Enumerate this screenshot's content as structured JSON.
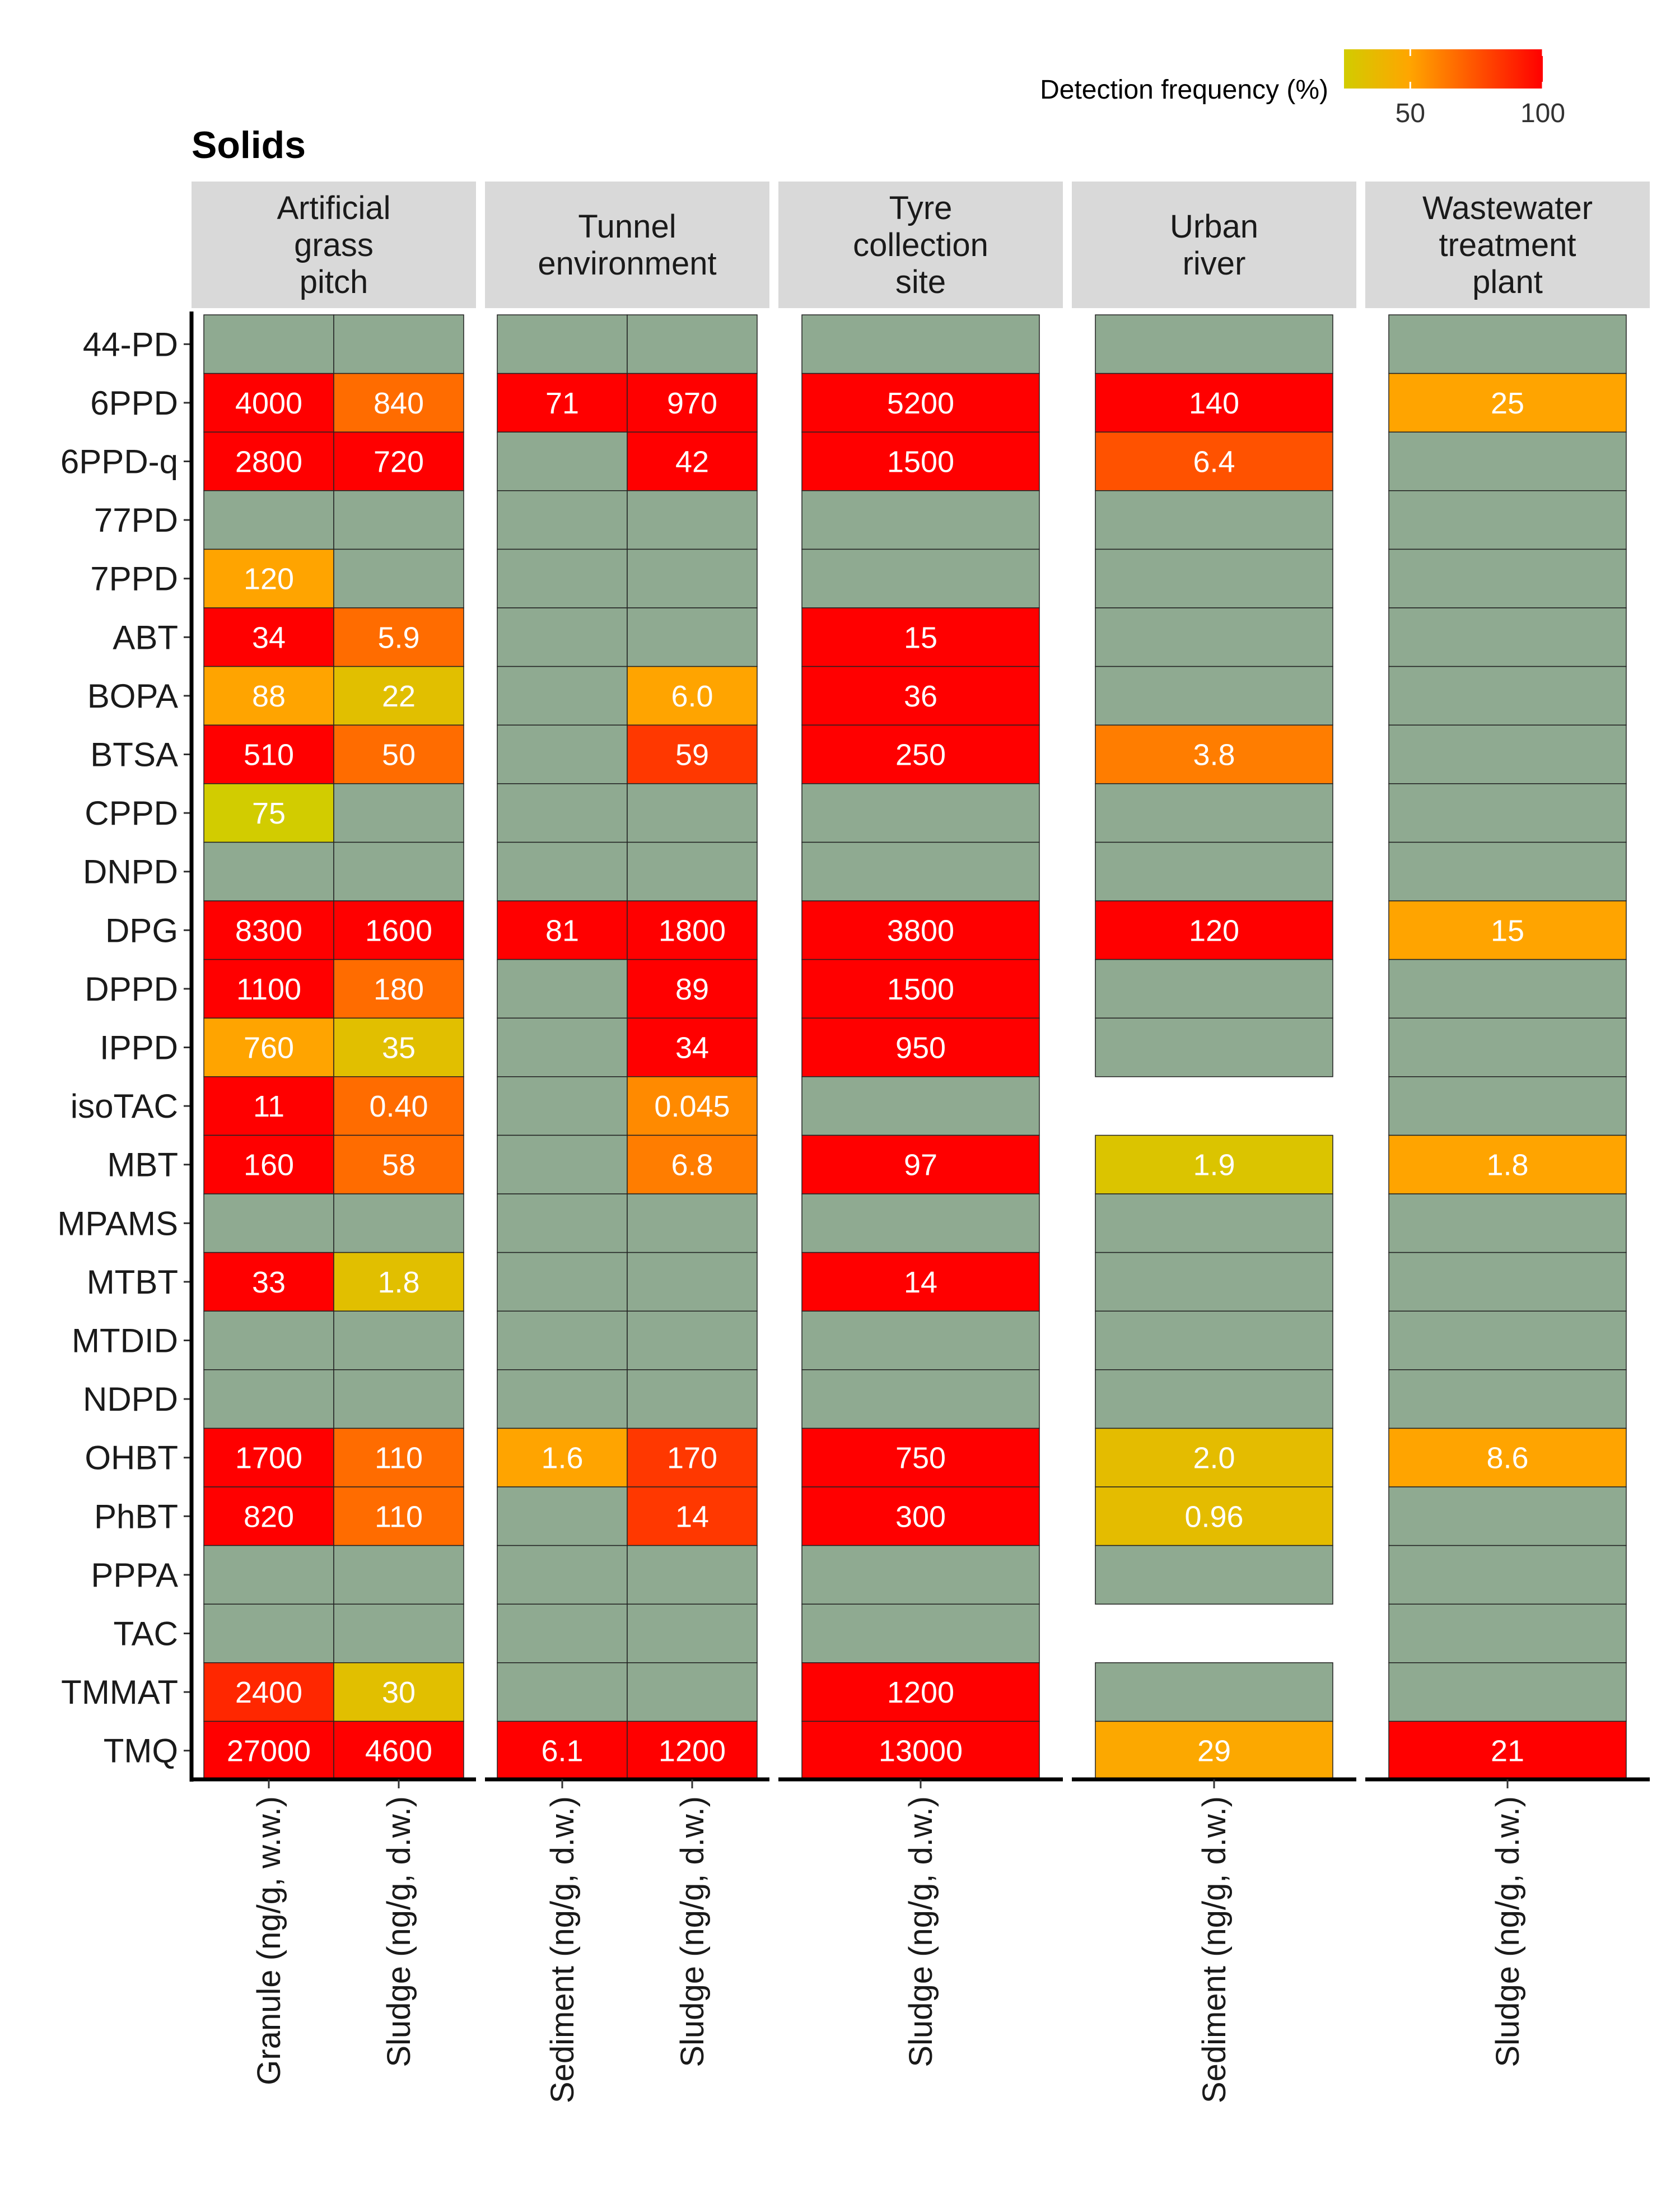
{
  "chart_data": {
    "type": "heatmap",
    "title": "Solids",
    "legend": {
      "title": "Detection frequency (%)",
      "ticks": [
        50,
        100
      ],
      "range": [
        25,
        100
      ],
      "colors": [
        "#d2cc00",
        "#ffa500",
        "#ff0000"
      ],
      "position": "top-right"
    },
    "non_detect_color": "#8faa91",
    "rows": [
      "44-PD",
      "6PPD",
      "6PPD-q",
      "77PD",
      "7PPD",
      "ABT",
      "BOPA",
      "BTSA",
      "CPPD",
      "DNPD",
      "DPG",
      "DPPD",
      "IPPD",
      "isoTAC",
      "MBT",
      "MPAMS",
      "MTBT",
      "MTDID",
      "NDPD",
      "OHBT",
      "PhBT",
      "PPPA",
      "TAC",
      "TMMAT",
      "TMQ"
    ],
    "facets": [
      {
        "name": "Artificial grass pitch",
        "lines": [
          "Artificial",
          "grass",
          "pitch"
        ],
        "columns": [
          {
            "label": "Granule (ng/g, w.w.)",
            "cells": [
              {
                "value": null
              },
              {
                "value": "4000",
                "df": 100
              },
              {
                "value": "2800",
                "df": 100
              },
              {
                "value": null
              },
              {
                "value": "120",
                "df": 50
              },
              {
                "value": "34",
                "df": 100
              },
              {
                "value": "88",
                "df": 50
              },
              {
                "value": "510",
                "df": 100
              },
              {
                "value": "75",
                "df": 25
              },
              {
                "value": null
              },
              {
                "value": "8300",
                "df": 100
              },
              {
                "value": "1100",
                "df": 100
              },
              {
                "value": "760",
                "df": 50
              },
              {
                "value": "11",
                "df": 100
              },
              {
                "value": "160",
                "df": 100
              },
              {
                "value": null
              },
              {
                "value": "33",
                "df": 100
              },
              {
                "value": null
              },
              {
                "value": null
              },
              {
                "value": "1700",
                "df": 100
              },
              {
                "value": "820",
                "df": 100
              },
              {
                "value": null
              },
              {
                "value": null
              },
              {
                "value": "2400",
                "df": 88
              },
              {
                "value": "27000",
                "df": 100
              }
            ]
          },
          {
            "label": "Sludge (ng/g, d.w.)",
            "cells": [
              {
                "value": null
              },
              {
                "value": "840",
                "df": 67
              },
              {
                "value": "720",
                "df": 100
              },
              {
                "value": null
              },
              {
                "value": null
              },
              {
                "value": "5.9",
                "df": 67
              },
              {
                "value": "22",
                "df": 33
              },
              {
                "value": "50",
                "df": 67
              },
              {
                "value": null
              },
              {
                "value": null
              },
              {
                "value": "1600",
                "df": 100
              },
              {
                "value": "180",
                "df": 67
              },
              {
                "value": "35",
                "df": 33
              },
              {
                "value": "0.40",
                "df": 67
              },
              {
                "value": "58",
                "df": 67
              },
              {
                "value": null
              },
              {
                "value": "1.8",
                "df": 33
              },
              {
                "value": null
              },
              {
                "value": null
              },
              {
                "value": "110",
                "df": 67
              },
              {
                "value": "110",
                "df": 67
              },
              {
                "value": null
              },
              {
                "value": null
              },
              {
                "value": "30",
                "df": 33
              },
              {
                "value": "4600",
                "df": 100
              }
            ]
          }
        ]
      },
      {
        "name": "Tunnel environment",
        "lines": [
          "Tunnel",
          "environment"
        ],
        "columns": [
          {
            "label": "Sediment (ng/g, d.w.)",
            "cells": [
              {
                "value": null
              },
              {
                "value": "71",
                "df": 100
              },
              {
                "value": null
              },
              {
                "value": null
              },
              {
                "value": null
              },
              {
                "value": null
              },
              {
                "value": null
              },
              {
                "value": null
              },
              {
                "value": null
              },
              {
                "value": null
              },
              {
                "value": "81",
                "df": 100
              },
              {
                "value": null
              },
              {
                "value": null
              },
              {
                "value": null
              },
              {
                "value": null
              },
              {
                "value": null
              },
              {
                "value": null
              },
              {
                "value": null
              },
              {
                "value": null
              },
              {
                "value": "1.6",
                "df": 50
              },
              {
                "value": null
              },
              {
                "value": null
              },
              {
                "value": null
              },
              {
                "value": null
              },
              {
                "value": "6.1",
                "df": 100
              }
            ]
          },
          {
            "label": "Sludge (ng/g, d.w.)",
            "cells": [
              {
                "value": null
              },
              {
                "value": "970",
                "df": 100
              },
              {
                "value": "42",
                "df": 100
              },
              {
                "value": null
              },
              {
                "value": null
              },
              {
                "value": null
              },
              {
                "value": "6.0",
                "df": 50
              },
              {
                "value": "59",
                "df": 83
              },
              {
                "value": null
              },
              {
                "value": null
              },
              {
                "value": "1800",
                "df": 100
              },
              {
                "value": "89",
                "df": 100
              },
              {
                "value": "34",
                "df": 100
              },
              {
                "value": "0.045",
                "df": 58
              },
              {
                "value": "6.8",
                "df": 62
              },
              {
                "value": null
              },
              {
                "value": null
              },
              {
                "value": null
              },
              {
                "value": null
              },
              {
                "value": "170",
                "df": 83
              },
              {
                "value": "14",
                "df": 83
              },
              {
                "value": null
              },
              {
                "value": null
              },
              {
                "value": null
              },
              {
                "value": "1200",
                "df": 100
              }
            ]
          }
        ]
      },
      {
        "name": "Tyre collection site",
        "lines": [
          "Tyre",
          "collection",
          "site"
        ],
        "columns": [
          {
            "label": "Sludge (ng/g, d.w.)",
            "cells": [
              {
                "value": null
              },
              {
                "value": "5200",
                "df": 100
              },
              {
                "value": "1500",
                "df": 100
              },
              {
                "value": null
              },
              {
                "value": null
              },
              {
                "value": "15",
                "df": 100
              },
              {
                "value": "36",
                "df": 100
              },
              {
                "value": "250",
                "df": 100
              },
              {
                "value": null
              },
              {
                "value": null
              },
              {
                "value": "3800",
                "df": 100
              },
              {
                "value": "1500",
                "df": 100
              },
              {
                "value": "950",
                "df": 100
              },
              {
                "value": null
              },
              {
                "value": "97",
                "df": 100
              },
              {
                "value": null
              },
              {
                "value": "14",
                "df": 100
              },
              {
                "value": null
              },
              {
                "value": null
              },
              {
                "value": "750",
                "df": 100
              },
              {
                "value": "300",
                "df": 100
              },
              {
                "value": null
              },
              {
                "value": null
              },
              {
                "value": "1200",
                "df": 100
              },
              {
                "value": "13000",
                "df": 100
              }
            ]
          }
        ]
      },
      {
        "name": "Urban river",
        "lines": [
          "Urban",
          "river"
        ],
        "columns": [
          {
            "label": "Sediment (ng/g, d.w.)",
            "cells": [
              {
                "value": null
              },
              {
                "value": "140",
                "df": 100
              },
              {
                "value": "6.4",
                "df": 75
              },
              {
                "value": null
              },
              {
                "value": null
              },
              {
                "value": null
              },
              {
                "value": null
              },
              {
                "value": "3.8",
                "df": 62
              },
              {
                "value": null
              },
              {
                "value": null
              },
              {
                "value": "120",
                "df": 100
              },
              {
                "value": null
              },
              {
                "value": null
              },
              {
                "missing": true
              },
              {
                "value": "1.9",
                "df": 30
              },
              {
                "value": null
              },
              {
                "value": null
              },
              {
                "value": null
              },
              {
                "value": null
              },
              {
                "value": "2.0",
                "df": 35
              },
              {
                "value": "0.96",
                "df": 35
              },
              {
                "value": null
              },
              {
                "missing": true
              },
              {
                "value": null
              },
              {
                "value": "29",
                "df": 48
              }
            ]
          }
        ]
      },
      {
        "name": "Wastewater treatment plant",
        "lines": [
          "Wastewater",
          "treatment",
          "plant"
        ],
        "columns": [
          {
            "label": "Sludge (ng/g, d.w.)",
            "cells": [
              {
                "value": null
              },
              {
                "value": "25",
                "df": 50
              },
              {
                "value": null
              },
              {
                "value": null
              },
              {
                "value": null
              },
              {
                "value": null
              },
              {
                "value": null
              },
              {
                "value": null
              },
              {
                "value": null
              },
              {
                "value": null
              },
              {
                "value": "15",
                "df": 50
              },
              {
                "value": null
              },
              {
                "value": null
              },
              {
                "value": null
              },
              {
                "value": "1.8",
                "df": 50
              },
              {
                "value": null
              },
              {
                "value": null
              },
              {
                "value": null
              },
              {
                "value": null
              },
              {
                "value": "8.6",
                "df": 50
              },
              {
                "value": null
              },
              {
                "value": null
              },
              {
                "value": null
              },
              {
                "value": null
              },
              {
                "value": "21",
                "df": 100
              }
            ]
          }
        ]
      }
    ]
  }
}
